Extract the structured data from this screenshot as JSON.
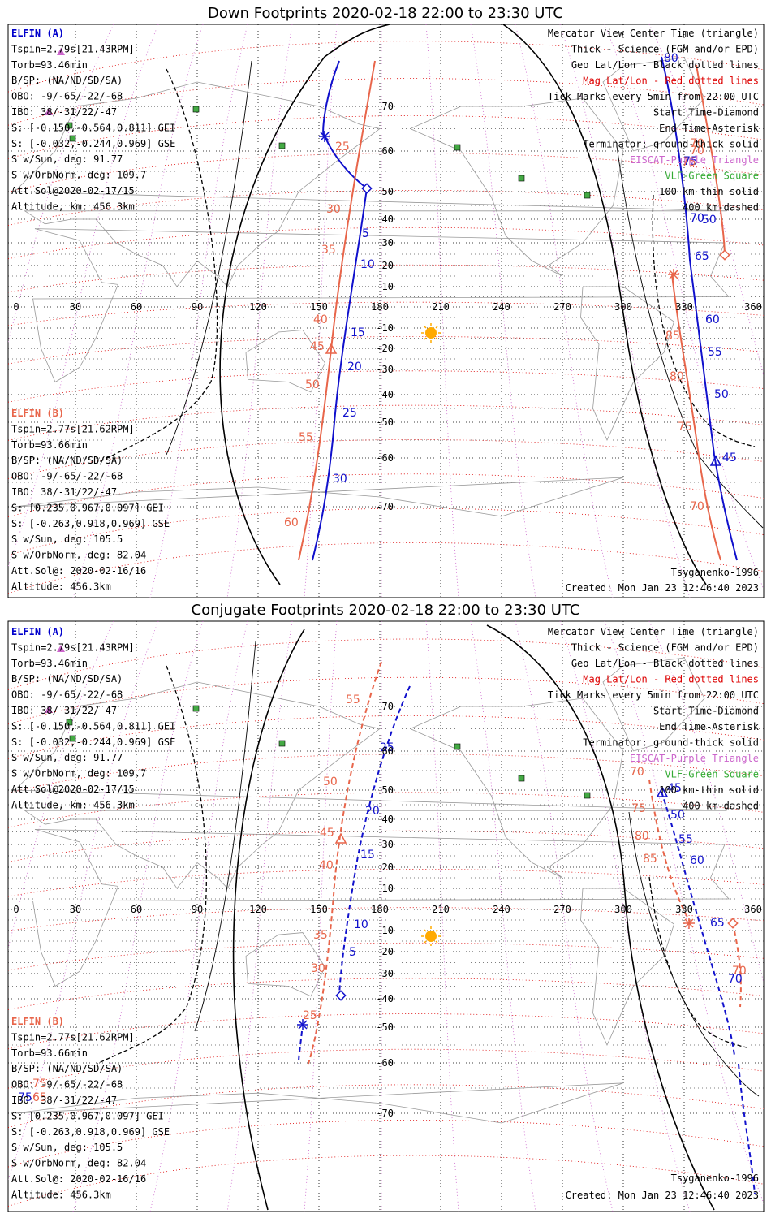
{
  "panels": [
    {
      "id": "down",
      "title": "Down Footprints 2020-02-18 22:00 to 23:30 UTC",
      "elfin_a": {
        "name": "ELFIN (A)",
        "lines": [
          "Tspin=2.79s[21.43RPM]",
          "Torb=93.46min",
          "B/SP: (NA/ND/SD/SA)",
          "OBO: -9/-65/-22/-68",
          "IBO: 38/-31/22/-47",
          "S: [-0.150,-0.564,0.811] GEI",
          "S: [-0.032,-0.244,0.969] GSE",
          "S w/Sun, deg: 91.77",
          "S w/OrbNorm, deg: 109.7",
          "Att.Sol@2020-02-17/15",
          "Altitude, km: 456.3km"
        ]
      },
      "elfin_b": {
        "name": "ELFIN (B)",
        "lines": [
          "Tspin=2.77s[21.62RPM]",
          "Torb=93.66min",
          "B/SP: (NA/ND/SD/SA)",
          "OBO: -9/-65/-22/-68",
          "IBO: 38/-31/22/-47",
          "S: [0.235,0.967,0.097] GEI",
          "S: [-0.263,0.918,0.969] GSE",
          "S w/Sun, deg: 105.5",
          "S w/OrbNorm, deg: 82.04",
          "Att.Sol@: 2020-02-16/16",
          "Altitude: 456.3km"
        ]
      },
      "legend": [
        {
          "text": "Mercator View Center Time (triangle)",
          "color": "#000000"
        },
        {
          "text": "Thick - Science (FGM and/or EPD)",
          "color": "#000000"
        },
        {
          "text": "Geo Lat/Lon - Black dotted lines",
          "color": "#000000"
        },
        {
          "text": "Mag Lat/Lon - Red dotted lines",
          "color": "#dd0000"
        },
        {
          "text": "Tick Marks every 5min from 22:00 UTC",
          "color": "#000000"
        },
        {
          "text": "Start Time-Diamond",
          "color": "#000000"
        },
        {
          "text": "End Time-Asterisk",
          "color": "#000000"
        },
        {
          "text": "Terminator: ground-thick solid",
          "color": "#000000"
        },
        {
          "text": "EISCAT-Purple Triangle",
          "color": "#cc66cc"
        },
        {
          "text": "VLF-Green Square",
          "color": "#33aa33"
        },
        {
          "text": "100 km-thin solid",
          "color": "#000000"
        },
        {
          "text": "400 km-dashed",
          "color": "#000000"
        }
      ],
      "model": "Tsyganenko-1996",
      "created": "Created: Mon Jan 23 12:46:40 2023",
      "trace_a_labels": [
        "5",
        "10",
        "15",
        "20",
        "25",
        "30",
        "50",
        "45",
        "50",
        "55",
        "60",
        "65",
        "70",
        "75",
        "80"
      ],
      "trace_b_labels": [
        "25",
        "30",
        "35",
        "40",
        "45",
        "50",
        "55",
        "60",
        "70",
        "75",
        "80",
        "85",
        "70",
        "75",
        "70"
      ]
    },
    {
      "id": "conjugate",
      "title": "Conjugate Footprints 2020-02-18 22:00 to 23:30 UTC",
      "elfin_a": {
        "name": "ELFIN (A)",
        "lines": [
          "Tspin=2.79s[21.43RPM]",
          "Torb=93.46min",
          "B/SP: (NA/ND/SD/SA)",
          "OBO: -9/-65/-22/-68",
          "IBO: 38/-31/22/-47",
          "S: [-0.150,-0.564,0.811] GEI",
          "S: [-0.032,-0.244,0.969] GSE",
          "S w/Sun, deg: 91.77",
          "S w/OrbNorm, deg: 109.7",
          "Att.Sol@2020-02-17/15",
          "Altitude, km: 456.3km"
        ]
      },
      "elfin_b": {
        "name": "ELFIN (B)",
        "lines": [
          "Tspin=2.77s[21.62RPM]",
          "Torb=93.66min",
          "B/SP: (NA/ND/SD/SA)",
          "OBO: -9/-65/-22/-68",
          "IBO: 38/-31/22/-47",
          "S: [0.235,0.967,0.097] GEI",
          "S: [-0.263,0.918,0.969] GSE",
          "S w/Sun, deg: 105.5",
          "S w/OrbNorm, deg: 82.04",
          "Att.Sol@: 2020-02-16/16",
          "Altitude: 456.3km"
        ]
      },
      "legend": [
        {
          "text": "Mercator View Center Time (triangle)",
          "color": "#000000"
        },
        {
          "text": "Thick - Science (FGM and/or EPD)",
          "color": "#000000"
        },
        {
          "text": "Geo Lat/Lon - Black dotted lines",
          "color": "#000000"
        },
        {
          "text": "Mag Lat/Lon - Red dotted lines",
          "color": "#dd0000"
        },
        {
          "text": "Tick Marks every 5min from 22:00 UTC",
          "color": "#000000"
        },
        {
          "text": "Start Time-Diamond",
          "color": "#000000"
        },
        {
          "text": "End Time-Asterisk",
          "color": "#000000"
        },
        {
          "text": "Terminator: ground-thick solid",
          "color": "#000000"
        },
        {
          "text": "EISCAT-Purple Triangle",
          "color": "#cc66cc"
        },
        {
          "text": "VLF-Green Square",
          "color": "#33aa33"
        },
        {
          "text": "100 km-thin solid",
          "color": "#000000"
        },
        {
          "text": "400 km-dashed",
          "color": "#000000"
        }
      ],
      "model": "Tsyganenko-1996",
      "created": "Created: Mon Jan 23 12:46:40 2023",
      "trace_a_labels": [
        "25",
        "20",
        "15",
        "10",
        "5",
        "45",
        "50",
        "55",
        "60",
        "65",
        "70",
        "75"
      ],
      "trace_b_labels": [
        "55",
        "50",
        "45",
        "40",
        "35",
        "30",
        "25",
        "70",
        "75",
        "80",
        "85",
        "70",
        "75",
        "65"
      ]
    }
  ],
  "axes": {
    "lon_ticks": [
      "0",
      "30",
      "60",
      "90",
      "120",
      "150",
      "180",
      "210",
      "240",
      "270",
      "300",
      "330",
      "360"
    ],
    "lat_ticks_down": [
      "70",
      "60",
      "50",
      "40",
      "30",
      "20",
      "10",
      "-10",
      "-20",
      "-30",
      "-40",
      "-50",
      "-60",
      "-70"
    ],
    "lat_ticks_conj": [
      "70",
      "60",
      "50",
      "40",
      "30",
      "20",
      "10",
      "-10",
      "-20",
      "-30",
      "-40",
      "-50",
      "-60",
      "-70"
    ]
  },
  "colors": {
    "elfin_a": "#1010cc",
    "elfin_b": "#e8654a",
    "geo_grid": "#000000",
    "mag_grid": "#dd0000",
    "eiscat": "#cc66cc",
    "vlf": "#44aa44",
    "sun": "#ffaa00"
  },
  "icons": {
    "sun": "sun-icon",
    "start": "diamond-icon",
    "end": "asterisk-icon",
    "center": "triangle-icon",
    "vlf": "square-icon"
  }
}
